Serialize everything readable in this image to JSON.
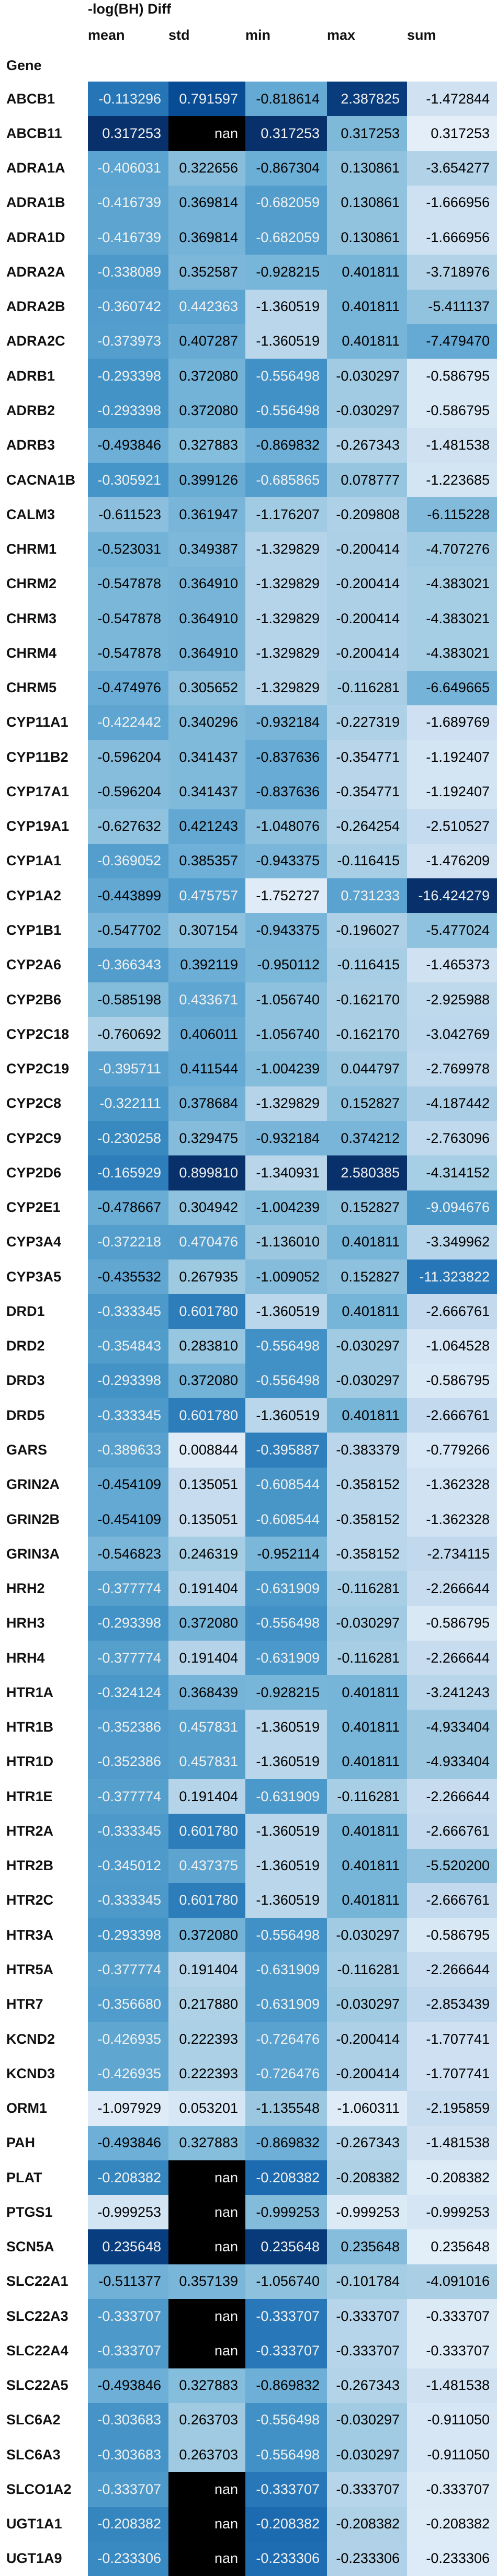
{
  "header": {
    "title": "-log(BH) Diff",
    "columns": [
      "mean",
      "std",
      "min",
      "max",
      "sum"
    ],
    "index_name": "Gene"
  },
  "rows": [
    {
      "gene": "ABCB1",
      "values": [
        "-0.113296",
        "0.791597",
        "-0.818614",
        "2.387825",
        "-1.472844"
      ]
    },
    {
      "gene": "ABCB11",
      "values": [
        "0.317253",
        "nan",
        "0.317253",
        "0.317253",
        "0.317253"
      ]
    },
    {
      "gene": "ADRA1A",
      "values": [
        "-0.406031",
        "0.322656",
        "-0.867304",
        "0.130861",
        "-3.654277"
      ]
    },
    {
      "gene": "ADRA1B",
      "values": [
        "-0.416739",
        "0.369814",
        "-0.682059",
        "0.130861",
        "-1.666956"
      ]
    },
    {
      "gene": "ADRA1D",
      "values": [
        "-0.416739",
        "0.369814",
        "-0.682059",
        "0.130861",
        "-1.666956"
      ]
    },
    {
      "gene": "ADRA2A",
      "values": [
        "-0.338089",
        "0.352587",
        "-0.928215",
        "0.401811",
        "-3.718976"
      ]
    },
    {
      "gene": "ADRA2B",
      "values": [
        "-0.360742",
        "0.442363",
        "-1.360519",
        "0.401811",
        "-5.411137"
      ]
    },
    {
      "gene": "ADRA2C",
      "values": [
        "-0.373973",
        "0.407287",
        "-1.360519",
        "0.401811",
        "-7.479470"
      ]
    },
    {
      "gene": "ADRB1",
      "values": [
        "-0.293398",
        "0.372080",
        "-0.556498",
        "-0.030297",
        "-0.586795"
      ]
    },
    {
      "gene": "ADRB2",
      "values": [
        "-0.293398",
        "0.372080",
        "-0.556498",
        "-0.030297",
        "-0.586795"
      ]
    },
    {
      "gene": "ADRB3",
      "values": [
        "-0.493846",
        "0.327883",
        "-0.869832",
        "-0.267343",
        "-1.481538"
      ]
    },
    {
      "gene": "CACNA1B",
      "values": [
        "-0.305921",
        "0.399126",
        "-0.685865",
        "0.078777",
        "-1.223685"
      ]
    },
    {
      "gene": "CALM3",
      "values": [
        "-0.611523",
        "0.361947",
        "-1.176207",
        "-0.209808",
        "-6.115228"
      ]
    },
    {
      "gene": "CHRM1",
      "values": [
        "-0.523031",
        "0.349387",
        "-1.329829",
        "-0.200414",
        "-4.707276"
      ]
    },
    {
      "gene": "CHRM2",
      "values": [
        "-0.547878",
        "0.364910",
        "-1.329829",
        "-0.200414",
        "-4.383021"
      ]
    },
    {
      "gene": "CHRM3",
      "values": [
        "-0.547878",
        "0.364910",
        "-1.329829",
        "-0.200414",
        "-4.383021"
      ]
    },
    {
      "gene": "CHRM4",
      "values": [
        "-0.547878",
        "0.364910",
        "-1.329829",
        "-0.200414",
        "-4.383021"
      ]
    },
    {
      "gene": "CHRM5",
      "values": [
        "-0.474976",
        "0.305652",
        "-1.329829",
        "-0.116281",
        "-6.649665"
      ]
    },
    {
      "gene": "CYP11A1",
      "values": [
        "-0.422442",
        "0.340296",
        "-0.932184",
        "-0.227319",
        "-1.689769"
      ]
    },
    {
      "gene": "CYP11B2",
      "values": [
        "-0.596204",
        "0.341437",
        "-0.837636",
        "-0.354771",
        "-1.192407"
      ]
    },
    {
      "gene": "CYP17A1",
      "values": [
        "-0.596204",
        "0.341437",
        "-0.837636",
        "-0.354771",
        "-1.192407"
      ]
    },
    {
      "gene": "CYP19A1",
      "values": [
        "-0.627632",
        "0.421243",
        "-1.048076",
        "-0.264254",
        "-2.510527"
      ]
    },
    {
      "gene": "CYP1A1",
      "values": [
        "-0.369052",
        "0.385357",
        "-0.943375",
        "-0.116415",
        "-1.476209"
      ]
    },
    {
      "gene": "CYP1A2",
      "values": [
        "-0.443899",
        "0.475757",
        "-1.752727",
        "0.731233",
        "-16.424279"
      ]
    },
    {
      "gene": "CYP1B1",
      "values": [
        "-0.547702",
        "0.307154",
        "-0.943375",
        "-0.196027",
        "-5.477024"
      ]
    },
    {
      "gene": "CYP2A6",
      "values": [
        "-0.366343",
        "0.392119",
        "-0.950112",
        "-0.116415",
        "-1.465373"
      ]
    },
    {
      "gene": "CYP2B6",
      "values": [
        "-0.585198",
        "0.433671",
        "-1.056740",
        "-0.162170",
        "-2.925988"
      ]
    },
    {
      "gene": "CYP2C18",
      "values": [
        "-0.760692",
        "0.406011",
        "-1.056740",
        "-0.162170",
        "-3.042769"
      ]
    },
    {
      "gene": "CYP2C19",
      "values": [
        "-0.395711",
        "0.411544",
        "-1.004239",
        "0.044797",
        "-2.769978"
      ]
    },
    {
      "gene": "CYP2C8",
      "values": [
        "-0.322111",
        "0.378684",
        "-1.329829",
        "0.152827",
        "-4.187442"
      ]
    },
    {
      "gene": "CYP2C9",
      "values": [
        "-0.230258",
        "0.329475",
        "-0.932184",
        "0.374212",
        "-2.763096"
      ]
    },
    {
      "gene": "CYP2D6",
      "values": [
        "-0.165929",
        "0.899810",
        "-1.340931",
        "2.580385",
        "-4.314152"
      ]
    },
    {
      "gene": "CYP2E1",
      "values": [
        "-0.478667",
        "0.304942",
        "-1.004239",
        "0.152827",
        "-9.094676"
      ]
    },
    {
      "gene": "CYP3A4",
      "values": [
        "-0.372218",
        "0.470476",
        "-1.136010",
        "0.401811",
        "-3.349962"
      ]
    },
    {
      "gene": "CYP3A5",
      "values": [
        "-0.435532",
        "0.267935",
        "-1.009052",
        "0.152827",
        "-11.323822"
      ]
    },
    {
      "gene": "DRD1",
      "values": [
        "-0.333345",
        "0.601780",
        "-1.360519",
        "0.401811",
        "-2.666761"
      ]
    },
    {
      "gene": "DRD2",
      "values": [
        "-0.354843",
        "0.283810",
        "-0.556498",
        "-0.030297",
        "-1.064528"
      ]
    },
    {
      "gene": "DRD3",
      "values": [
        "-0.293398",
        "0.372080",
        "-0.556498",
        "-0.030297",
        "-0.586795"
      ]
    },
    {
      "gene": "DRD5",
      "values": [
        "-0.333345",
        "0.601780",
        "-1.360519",
        "0.401811",
        "-2.666761"
      ]
    },
    {
      "gene": "GARS",
      "values": [
        "-0.389633",
        "0.008844",
        "-0.395887",
        "-0.383379",
        "-0.779266"
      ]
    },
    {
      "gene": "GRIN2A",
      "values": [
        "-0.454109",
        "0.135051",
        "-0.608544",
        "-0.358152",
        "-1.362328"
      ]
    },
    {
      "gene": "GRIN2B",
      "values": [
        "-0.454109",
        "0.135051",
        "-0.608544",
        "-0.358152",
        "-1.362328"
      ]
    },
    {
      "gene": "GRIN3A",
      "values": [
        "-0.546823",
        "0.246319",
        "-0.952114",
        "-0.358152",
        "-2.734115"
      ]
    },
    {
      "gene": "HRH2",
      "values": [
        "-0.377774",
        "0.191404",
        "-0.631909",
        "-0.116281",
        "-2.266644"
      ]
    },
    {
      "gene": "HRH3",
      "values": [
        "-0.293398",
        "0.372080",
        "-0.556498",
        "-0.030297",
        "-0.586795"
      ]
    },
    {
      "gene": "HRH4",
      "values": [
        "-0.377774",
        "0.191404",
        "-0.631909",
        "-0.116281",
        "-2.266644"
      ]
    },
    {
      "gene": "HTR1A",
      "values": [
        "-0.324124",
        "0.368439",
        "-0.928215",
        "0.401811",
        "-3.241243"
      ]
    },
    {
      "gene": "HTR1B",
      "values": [
        "-0.352386",
        "0.457831",
        "-1.360519",
        "0.401811",
        "-4.933404"
      ]
    },
    {
      "gene": "HTR1D",
      "values": [
        "-0.352386",
        "0.457831",
        "-1.360519",
        "0.401811",
        "-4.933404"
      ]
    },
    {
      "gene": "HTR1E",
      "values": [
        "-0.377774",
        "0.191404",
        "-0.631909",
        "-0.116281",
        "-2.266644"
      ]
    },
    {
      "gene": "HTR2A",
      "values": [
        "-0.333345",
        "0.601780",
        "-1.360519",
        "0.401811",
        "-2.666761"
      ]
    },
    {
      "gene": "HTR2B",
      "values": [
        "-0.345012",
        "0.437375",
        "-1.360519",
        "0.401811",
        "-5.520200"
      ]
    },
    {
      "gene": "HTR2C",
      "values": [
        "-0.333345",
        "0.601780",
        "-1.360519",
        "0.401811",
        "-2.666761"
      ]
    },
    {
      "gene": "HTR3A",
      "values": [
        "-0.293398",
        "0.372080",
        "-0.556498",
        "-0.030297",
        "-0.586795"
      ]
    },
    {
      "gene": "HTR5A",
      "values": [
        "-0.377774",
        "0.191404",
        "-0.631909",
        "-0.116281",
        "-2.266644"
      ]
    },
    {
      "gene": "HTR7",
      "values": [
        "-0.356680",
        "0.217880",
        "-0.631909",
        "-0.030297",
        "-2.853439"
      ]
    },
    {
      "gene": "KCND2",
      "values": [
        "-0.426935",
        "0.222393",
        "-0.726476",
        "-0.200414",
        "-1.707741"
      ]
    },
    {
      "gene": "KCND3",
      "values": [
        "-0.426935",
        "0.222393",
        "-0.726476",
        "-0.200414",
        "-1.707741"
      ]
    },
    {
      "gene": "ORM1",
      "values": [
        "-1.097929",
        "0.053201",
        "-1.135548",
        "-1.060311",
        "-2.195859"
      ]
    },
    {
      "gene": "PAH",
      "values": [
        "-0.493846",
        "0.327883",
        "-0.869832",
        "-0.267343",
        "-1.481538"
      ]
    },
    {
      "gene": "PLAT",
      "values": [
        "-0.208382",
        "nan",
        "-0.208382",
        "-0.208382",
        "-0.208382"
      ]
    },
    {
      "gene": "PTGS1",
      "values": [
        "-0.999253",
        "nan",
        "-0.999253",
        "-0.999253",
        "-0.999253"
      ]
    },
    {
      "gene": "SCN5A",
      "values": [
        "0.235648",
        "nan",
        "0.235648",
        "0.235648",
        "0.235648"
      ]
    },
    {
      "gene": "SLC22A1",
      "values": [
        "-0.511377",
        "0.357139",
        "-1.056740",
        "-0.101784",
        "-4.091016"
      ]
    },
    {
      "gene": "SLC22A3",
      "values": [
        "-0.333707",
        "nan",
        "-0.333707",
        "-0.333707",
        "-0.333707"
      ]
    },
    {
      "gene": "SLC22A4",
      "values": [
        "-0.333707",
        "nan",
        "-0.333707",
        "-0.333707",
        "-0.333707"
      ]
    },
    {
      "gene": "SLC22A5",
      "values": [
        "-0.493846",
        "0.327883",
        "-0.869832",
        "-0.267343",
        "-1.481538"
      ]
    },
    {
      "gene": "SLC6A2",
      "values": [
        "-0.303683",
        "0.263703",
        "-0.556498",
        "-0.030297",
        "-0.911050"
      ]
    },
    {
      "gene": "SLC6A3",
      "values": [
        "-0.303683",
        "0.263703",
        "-0.556498",
        "-0.030297",
        "-0.911050"
      ]
    },
    {
      "gene": "SLCO1A2",
      "values": [
        "-0.333707",
        "nan",
        "-0.333707",
        "-0.333707",
        "-0.333707"
      ]
    },
    {
      "gene": "UGT1A1",
      "values": [
        "-0.208382",
        "nan",
        "-0.208382",
        "-0.208382",
        "-0.208382"
      ]
    },
    {
      "gene": "UGT1A9",
      "values": [
        "-0.233306",
        "nan",
        "-0.233306",
        "-0.233306",
        "-0.233306"
      ]
    }
  ]
}
